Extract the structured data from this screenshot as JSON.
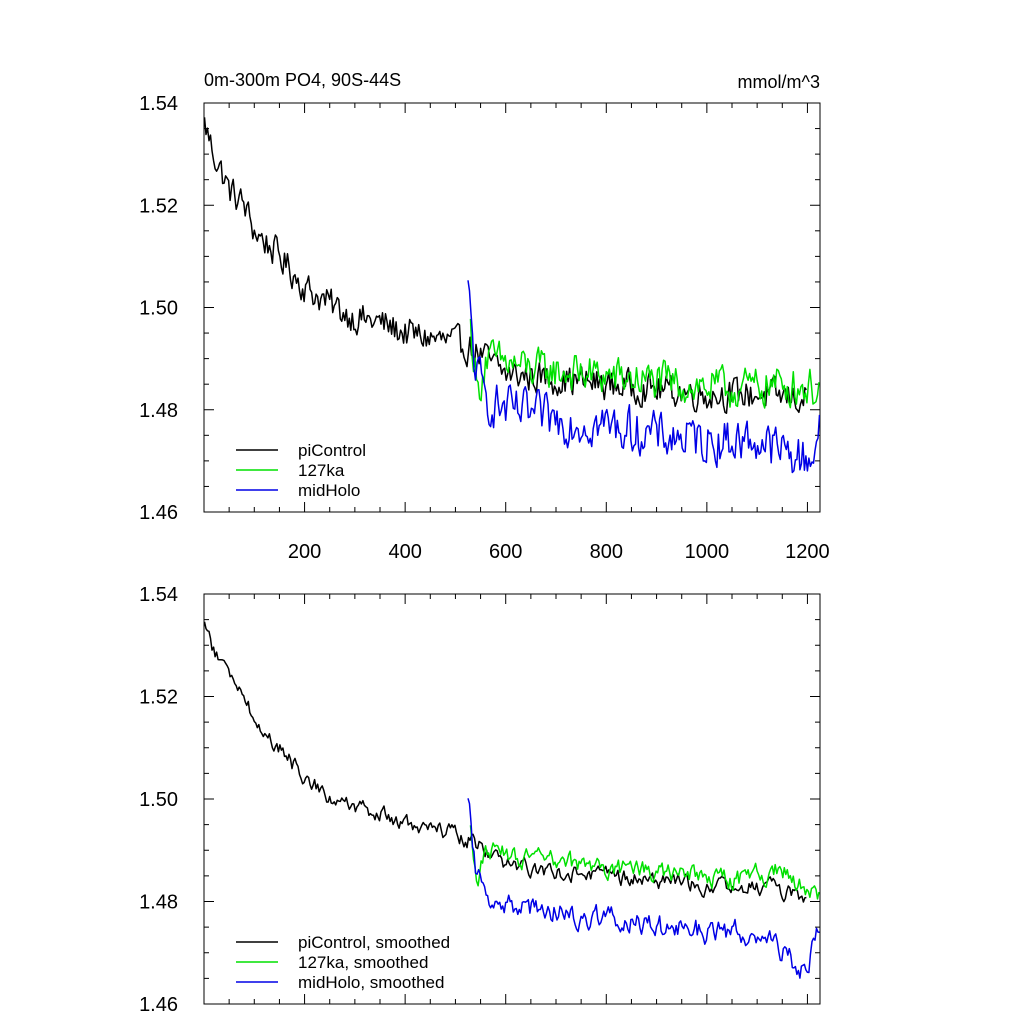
{
  "figure": {
    "title_left": "0m-300m PO4, 90S-44S",
    "title_right": "mmol/m^3"
  },
  "colors": {
    "piControl": "#000000",
    "127ka": "#00e000",
    "midHolo": "#0000e6"
  },
  "chart_data": [
    {
      "type": "line",
      "xlim": [
        0,
        1225
      ],
      "ylim": [
        1.46,
        1.54
      ],
      "yticks": [
        "1.46",
        "1.48",
        "1.50",
        "1.52",
        "1.54"
      ],
      "xticks": [
        "200",
        "400",
        "600",
        "800",
        "1000",
        "1200"
      ],
      "legend": {
        "position": "bottom-left",
        "entries": [
          "piControl",
          "127ka",
          "midHolo"
        ]
      },
      "series": [
        {
          "name": "piControl",
          "start": 1,
          "end": 1200,
          "anchors": [
            [
              1,
              1.536
            ],
            [
              20,
              1.53
            ],
            [
              50,
              1.523
            ],
            [
              80,
              1.52
            ],
            [
              100,
              1.515
            ],
            [
              150,
              1.51
            ],
            [
              200,
              1.504
            ],
            [
              260,
              1.5
            ],
            [
              300,
              1.498
            ],
            [
              350,
              1.497
            ],
            [
              400,
              1.495
            ],
            [
              450,
              1.494
            ],
            [
              500,
              1.493
            ],
            [
              530,
              1.492
            ],
            [
              560,
              1.49
            ],
            [
              600,
              1.487
            ],
            [
              700,
              1.486
            ],
            [
              800,
              1.485
            ],
            [
              900,
              1.484
            ],
            [
              1000,
              1.483
            ],
            [
              1100,
              1.483
            ],
            [
              1200,
              1.482
            ]
          ],
          "noise": 0.0028,
          "smoothed": false
        },
        {
          "name": "127ka",
          "start": 530,
          "end": 1225,
          "anchors": [
            [
              530,
              1.496
            ],
            [
              545,
              1.483
            ],
            [
              560,
              1.49
            ],
            [
              650,
              1.488
            ],
            [
              750,
              1.487
            ],
            [
              850,
              1.486
            ],
            [
              950,
              1.485
            ],
            [
              1050,
              1.484
            ],
            [
              1150,
              1.485
            ],
            [
              1225,
              1.484
            ]
          ],
          "noise": 0.0035,
          "smoothed": false
        },
        {
          "name": "midHolo",
          "start": 525,
          "end": 1225,
          "anchors": [
            [
              525,
              1.503
            ],
            [
              540,
              1.488
            ],
            [
              560,
              1.482
            ],
            [
              600,
              1.48
            ],
            [
              700,
              1.478
            ],
            [
              800,
              1.477
            ],
            [
              900,
              1.475
            ],
            [
              1000,
              1.474
            ],
            [
              1100,
              1.474
            ],
            [
              1200,
              1.47
            ],
            [
              1225,
              1.476
            ]
          ],
          "noise": 0.004,
          "smoothed": false
        }
      ]
    },
    {
      "type": "line",
      "xlim": [
        0,
        1225
      ],
      "ylim": [
        1.46,
        1.54
      ],
      "yticks": [
        "1.46",
        "1.48",
        "1.50",
        "1.52",
        "1.54"
      ],
      "xticks": [],
      "legend": {
        "position": "bottom-left",
        "entries": [
          "piControl, smoothed",
          "127ka, smoothed",
          "midHolo, smoothed"
        ]
      },
      "series": [
        {
          "name": "piControl, smoothed",
          "start": 1,
          "end": 1200,
          "anchors": [
            [
              1,
              1.534
            ],
            [
              20,
              1.529
            ],
            [
              50,
              1.524
            ],
            [
              80,
              1.521
            ],
            [
              100,
              1.515
            ],
            [
              150,
              1.51
            ],
            [
              200,
              1.504
            ],
            [
              260,
              1.5
            ],
            [
              300,
              1.498
            ],
            [
              350,
              1.497
            ],
            [
              400,
              1.495
            ],
            [
              450,
              1.494
            ],
            [
              500,
              1.493
            ],
            [
              530,
              1.492
            ],
            [
              560,
              1.49
            ],
            [
              600,
              1.487
            ],
            [
              700,
              1.486
            ],
            [
              800,
              1.485
            ],
            [
              900,
              1.484
            ],
            [
              1000,
              1.483
            ],
            [
              1100,
              1.483
            ],
            [
              1200,
              1.481
            ]
          ],
          "noise": 0.0022,
          "smoothed": true
        },
        {
          "name": "127ka, smoothed",
          "start": 530,
          "end": 1225,
          "anchors": [
            [
              530,
              1.494
            ],
            [
              545,
              1.484
            ],
            [
              560,
              1.49
            ],
            [
              650,
              1.488
            ],
            [
              750,
              1.487
            ],
            [
              850,
              1.486
            ],
            [
              950,
              1.485
            ],
            [
              1050,
              1.484
            ],
            [
              1150,
              1.486
            ],
            [
              1225,
              1.48
            ]
          ],
          "noise": 0.0028,
          "smoothed": true
        },
        {
          "name": "midHolo, smoothed",
          "start": 525,
          "end": 1225,
          "anchors": [
            [
              525,
              1.499
            ],
            [
              540,
              1.487
            ],
            [
              560,
              1.482
            ],
            [
              600,
              1.479
            ],
            [
              700,
              1.478
            ],
            [
              800,
              1.477
            ],
            [
              900,
              1.475
            ],
            [
              1000,
              1.474
            ],
            [
              1100,
              1.474
            ],
            [
              1200,
              1.466
            ],
            [
              1225,
              1.477
            ]
          ],
          "noise": 0.0032,
          "smoothed": true
        }
      ]
    }
  ]
}
